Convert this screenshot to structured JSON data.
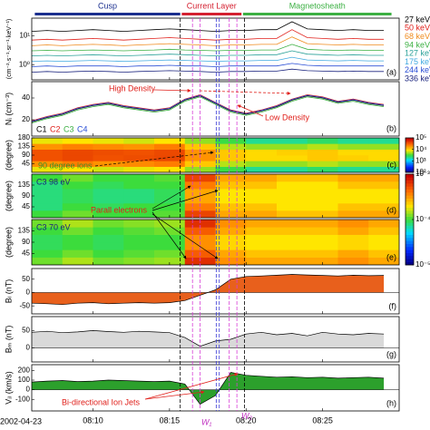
{
  "header": {
    "segments": [
      {
        "name": "Cusp",
        "color": "#1a2f8f",
        "span": [
          6.2,
          15.7
        ]
      },
      {
        "name": "Current Layer",
        "color": "#d42030",
        "span": [
          15.8,
          19.7
        ]
      },
      {
        "name": "Magnetosheath",
        "color": "#3cb043",
        "span": [
          19.8,
          29.5
        ]
      }
    ]
  },
  "time_axis": {
    "date_label": "2002-04-23",
    "xlim": [
      6,
      30
    ],
    "xticks": [
      {
        "value": 10,
        "label": "08:10"
      },
      {
        "value": 15,
        "label": "08:15"
      },
      {
        "value": 20,
        "label": "08:20"
      },
      {
        "value": 25,
        "label": "08:25"
      }
    ]
  },
  "markers": [
    {
      "t": 15.7,
      "color": "#000000"
    },
    {
      "t": 16.5,
      "color": "#d63cd6"
    },
    {
      "t": 17.0,
      "color": "#d63cd6"
    },
    {
      "t": 18.05,
      "color": "#3a3ad6"
    },
    {
      "t": 18.25,
      "color": "#3a3ad6"
    },
    {
      "t": 18.9,
      "color": "#d63cd6"
    },
    {
      "t": 19.4,
      "color": "#d63cd6"
    },
    {
      "t": 19.9,
      "color": "#000000"
    }
  ],
  "annotations": {
    "high_density": "High Density",
    "low_density": "Low Density",
    "ions": "90 degree ions",
    "electrons": "Parall electrons",
    "jets": "Bi-directional Ion Jets",
    "w1": "W₁",
    "w2": "W₂"
  },
  "chart_data": [
    {
      "type": "line",
      "label": "(a)",
      "ylabel": "(cm⁻²·s⁻¹·sr⁻¹·keV⁻¹)",
      "log": true,
      "ylim": [
        0.3,
        40
      ],
      "yticks": [
        {
          "value": 1,
          "label": "10⁰"
        },
        {
          "value": 10,
          "label": "10¹"
        }
      ],
      "x": [
        6,
        7,
        8,
        9,
        10,
        11,
        12,
        13,
        14,
        15,
        16,
        17,
        18,
        19,
        20,
        21,
        22,
        23,
        24,
        25,
        26,
        27,
        28,
        29
      ],
      "series": [
        {
          "name": "27 keV",
          "color": "#000000",
          "values": [
            14,
            15,
            14,
            15,
            16,
            15,
            14,
            15,
            16,
            17,
            16,
            15,
            14,
            15,
            15,
            16,
            16,
            30,
            17,
            16,
            15,
            16,
            15,
            15
          ]
        },
        {
          "name": "50 keV",
          "color": "#e0201b",
          "values": [
            7,
            7.5,
            7,
            7.5,
            8,
            7.5,
            7,
            7.5,
            8,
            8.5,
            8,
            7.5,
            7,
            7.5,
            7.5,
            8,
            8,
            16,
            8.5,
            8,
            7.5,
            8,
            7.5,
            7.5
          ]
        },
        {
          "name": "68 keV",
          "color": "#f08a1c",
          "values": [
            4.5,
            4.8,
            4.5,
            4.8,
            5,
            4.8,
            4.5,
            4.8,
            5,
            5.3,
            5,
            4.8,
            4.5,
            4.8,
            4.8,
            5,
            5,
            9,
            5.3,
            5,
            4.8,
            5,
            4.8,
            4.8
          ]
        },
        {
          "name": "94 keV",
          "color": "#3cb043",
          "values": [
            3,
            3.1,
            3,
            3.1,
            3.2,
            3.1,
            3,
            3.1,
            3.2,
            3.4,
            3.2,
            3.1,
            3,
            3.1,
            3.1,
            3.2,
            3.2,
            5,
            3.4,
            3.2,
            3.1,
            3.2,
            3.1,
            3.1
          ]
        },
        {
          "name": "127 keV",
          "color": "#2aa198",
          "values": [
            2,
            2.1,
            2,
            2.1,
            2.2,
            2.1,
            2,
            2.1,
            2.2,
            2.3,
            2.2,
            2.1,
            2,
            2.1,
            2.1,
            2.2,
            2.2,
            3,
            2.3,
            2.2,
            2.1,
            2.2,
            2.1,
            2.1
          ]
        },
        {
          "name": "175 keV",
          "color": "#3fa9e0",
          "values": [
            1.3,
            1.35,
            1.3,
            1.35,
            1.4,
            1.35,
            1.3,
            1.35,
            1.4,
            1.45,
            1.4,
            1.35,
            1.3,
            1.35,
            1.35,
            1.4,
            1.4,
            1.8,
            1.45,
            1.4,
            1.35,
            1.4,
            1.35,
            1.35
          ]
        },
        {
          "name": "244 keV",
          "color": "#2b4fd6",
          "values": [
            0.85,
            0.9,
            0.85,
            0.9,
            0.9,
            0.9,
            0.85,
            0.9,
            0.9,
            0.95,
            0.9,
            0.9,
            0.85,
            0.9,
            0.9,
            0.9,
            0.9,
            1.1,
            0.95,
            0.9,
            0.9,
            0.9,
            0.9,
            0.9
          ]
        },
        {
          "name": "336 keV",
          "color": "#1a237e",
          "values": [
            0.55,
            0.58,
            0.55,
            0.58,
            0.6,
            0.58,
            0.55,
            0.58,
            0.6,
            0.62,
            0.6,
            0.58,
            0.55,
            0.58,
            0.58,
            0.6,
            0.6,
            0.7,
            0.62,
            0.6,
            0.58,
            0.6,
            0.58,
            0.58
          ]
        }
      ]
    },
    {
      "type": "line",
      "label": "(b)",
      "ylabel": "Nᵢ (cm⁻³)",
      "ylim": [
        5,
        55
      ],
      "yticks": [
        20,
        40
      ],
      "x": [
        6,
        7,
        8,
        9,
        10,
        11,
        12,
        13,
        14,
        15,
        16,
        17,
        18,
        19,
        20,
        21,
        22,
        23,
        24,
        25,
        26,
        27,
        28,
        29
      ],
      "series": [
        {
          "name": "C1",
          "color": "#000000",
          "values": [
            18,
            22,
            25,
            30,
            33,
            35,
            32,
            30,
            28,
            30,
            38,
            42,
            35,
            28,
            25,
            28,
            32,
            38,
            42,
            40,
            36,
            38,
            35,
            33
          ]
        },
        {
          "name": "C2",
          "color": "#e0201b",
          "values": [
            19,
            23,
            26,
            31,
            34,
            36,
            33,
            31,
            29,
            31,
            39,
            43,
            36,
            29,
            26,
            29,
            33,
            39,
            43,
            41,
            37,
            39,
            36,
            34
          ]
        },
        {
          "name": "C3",
          "color": "#3cb043",
          "values": [
            17,
            21,
            24,
            29,
            32,
            34,
            31,
            29,
            27,
            29,
            37,
            41,
            34,
            27,
            24,
            27,
            31,
            37,
            41,
            39,
            35,
            37,
            34,
            32
          ]
        },
        {
          "name": "C4",
          "color": "#2b4fd6",
          "values": [
            18.5,
            22.5,
            25.5,
            30.5,
            33.5,
            35.5,
            32.5,
            30.5,
            28.5,
            30.5,
            38.5,
            42.5,
            35.5,
            28.5,
            25.5,
            28.5,
            32.5,
            38.5,
            42.5,
            40.5,
            36.5,
            38.5,
            35.5,
            33.5
          ]
        }
      ]
    },
    {
      "type": "heatmap",
      "label": "(c)",
      "ylabel": "(degree)",
      "ylim": [
        0,
        180
      ],
      "yticks": [
        45,
        90,
        135,
        180
      ],
      "x_bins": [
        6,
        8,
        10,
        12,
        14,
        16,
        18,
        20,
        22,
        24,
        26,
        28,
        30
      ],
      "y_bins": [
        0,
        30,
        60,
        90,
        120,
        150,
        180
      ],
      "colormap": "jet",
      "clim": [
        100,
        100000
      ],
      "colorbar_ticks": [
        {
          "value": 100,
          "label": "10²"
        },
        {
          "value": 1000,
          "label": "10³"
        },
        {
          "value": 10000,
          "label": "10⁴"
        },
        {
          "value": 100000,
          "label": "10⁵"
        }
      ],
      "values": [
        [
          8000,
          9000,
          7000,
          8000,
          9000,
          5000,
          3000,
          2000,
          2000,
          2500,
          2000,
          2000
        ],
        [
          20000,
          25000,
          20000,
          22000,
          25000,
          12000,
          6000,
          5000,
          5000,
          6000,
          5000,
          5000
        ],
        [
          40000,
          45000,
          40000,
          42000,
          45000,
          20000,
          12000,
          10000,
          10000,
          12000,
          11000,
          10000
        ],
        [
          40000,
          45000,
          42000,
          40000,
          44000,
          20000,
          12000,
          10000,
          11000,
          12000,
          10000,
          10000
        ],
        [
          20000,
          24000,
          22000,
          20000,
          25000,
          12000,
          6000,
          5000,
          5000,
          6000,
          5000,
          5000
        ],
        [
          8000,
          9000,
          8000,
          7000,
          9000,
          5000,
          3000,
          2000,
          2000,
          2500,
          2000,
          2000
        ]
      ]
    },
    {
      "type": "heatmap",
      "label": "(d)",
      "ylabel": "(degree)",
      "tag": "C3 98 eV",
      "ylim": [
        0,
        180
      ],
      "yticks": [
        45,
        90,
        135
      ],
      "x_bins": [
        6,
        8,
        10,
        12,
        14,
        16,
        18,
        20,
        22,
        24,
        26,
        28,
        30
      ],
      "y_bins": [
        0,
        30,
        60,
        90,
        120,
        150,
        180
      ],
      "colormap": "jet",
      "clim": [
        1e-05,
        0.001
      ],
      "colorbar_ticks": [
        {
          "value": 1e-05,
          "label": "10⁻⁵"
        },
        {
          "value": 0.0001,
          "label": "10⁻⁴"
        },
        {
          "value": 0.001,
          "label": "10⁻³"
        }
      ],
      "values": [
        [
          0.0001,
          0.00012,
          0.0001,
          0.0001,
          0.00011,
          0.0006,
          0.0003,
          0.0003,
          0.00025,
          0.00025,
          0.0003,
          0.0003
        ],
        [
          8e-05,
          0.0001,
          9e-05,
          0.0001,
          0.0001,
          0.0004,
          0.00025,
          0.00025,
          0.0002,
          0.0002,
          0.00025,
          0.00025
        ],
        [
          8e-05,
          9e-05,
          8e-05,
          8e-05,
          9e-05,
          0.0003,
          0.0002,
          0.0002,
          0.0002,
          0.0002,
          0.0002,
          0.0002
        ],
        [
          8e-05,
          9e-05,
          8e-05,
          8e-05,
          9e-05,
          0.0003,
          0.0002,
          0.0002,
          0.0002,
          0.0002,
          0.0002,
          0.0002
        ],
        [
          8e-05,
          0.0001,
          9e-05,
          0.0001,
          0.0001,
          0.0004,
          0.00025,
          0.00025,
          0.0002,
          0.0002,
          0.00025,
          0.00025
        ],
        [
          0.0001,
          0.00012,
          0.0001,
          0.0001,
          0.00011,
          0.0006,
          0.0003,
          0.0003,
          0.00025,
          0.00025,
          0.0003,
          0.0003
        ]
      ]
    },
    {
      "type": "heatmap",
      "label": "(e)",
      "ylabel": "(degree)",
      "tag": "C3 70 eV",
      "ylim": [
        0,
        180
      ],
      "yticks": [
        45,
        90,
        135
      ],
      "x_bins": [
        6,
        8,
        10,
        12,
        14,
        16,
        18,
        20,
        22,
        24,
        26,
        28,
        30
      ],
      "y_bins": [
        0,
        30,
        60,
        90,
        120,
        150,
        180
      ],
      "colormap": "jet",
      "clim": [
        1e-05,
        0.001
      ],
      "values": [
        [
          0.00012,
          0.00015,
          0.00012,
          0.00013,
          0.00014,
          0.0007,
          0.00035,
          0.0003,
          0.0003,
          0.0003,
          0.00035,
          0.0003
        ],
        [
          0.0001,
          0.00012,
          0.0001,
          0.00011,
          0.00012,
          0.0005,
          0.0003,
          0.00025,
          0.00025,
          0.00025,
          0.0003,
          0.00025
        ],
        [
          9e-05,
          0.0001,
          9e-05,
          0.0001,
          0.0001,
          0.00035,
          0.00022,
          0.0002,
          0.0002,
          0.0002,
          0.00022,
          0.0002
        ],
        [
          9e-05,
          0.0001,
          9e-05,
          0.0001,
          0.0001,
          0.00035,
          0.00022,
          0.0002,
          0.0002,
          0.0002,
          0.00022,
          0.0002
        ],
        [
          0.0001,
          0.00012,
          0.0001,
          0.00011,
          0.00012,
          0.0005,
          0.0003,
          0.00025,
          0.00025,
          0.00025,
          0.0003,
          0.00025
        ],
        [
          0.00012,
          0.00015,
          0.00012,
          0.00013,
          0.00014,
          0.0007,
          0.00035,
          0.0003,
          0.0003,
          0.0003,
          0.00035,
          0.0003
        ]
      ]
    },
    {
      "type": "area",
      "label": "(f)",
      "ylabel": "Bₗ (nT)",
      "ylim": [
        -80,
        90
      ],
      "yticks": [
        -50,
        0,
        50
      ],
      "color": "#e8601c",
      "x": [
        6,
        7,
        8,
        9,
        10,
        11,
        12,
        13,
        14,
        15,
        16,
        17,
        18,
        19,
        20,
        21,
        22,
        23,
        24,
        25,
        26,
        27,
        28,
        29
      ],
      "values": [
        -40,
        -42,
        -45,
        -40,
        -38,
        -42,
        -40,
        -38,
        -40,
        -38,
        -30,
        -10,
        10,
        50,
        60,
        62,
        65,
        68,
        66,
        64,
        62,
        65,
        63,
        64
      ]
    },
    {
      "type": "area",
      "label": "(g)",
      "ylabel": "Bₘ (nT)",
      "ylim": [
        -40,
        90
      ],
      "yticks": [
        0,
        50
      ],
      "color": "#d9d9d9",
      "x": [
        6,
        7,
        8,
        9,
        10,
        11,
        12,
        13,
        14,
        15,
        16,
        17,
        18,
        19,
        20,
        21,
        22,
        23,
        24,
        25,
        26,
        27,
        28,
        29
      ],
      "values": [
        45,
        48,
        44,
        46,
        50,
        47,
        45,
        48,
        46,
        44,
        30,
        5,
        20,
        25,
        40,
        45,
        38,
        42,
        35,
        45,
        40,
        38,
        42,
        40
      ]
    },
    {
      "type": "area",
      "label": "(h)",
      "ylabel": "Vᵢₗ (km/s)",
      "ylim": [
        -220,
        260
      ],
      "yticks": [
        -100,
        0,
        100,
        200
      ],
      "color": "#2ca02c",
      "x": [
        6,
        7,
        8,
        9,
        10,
        11,
        12,
        13,
        14,
        15,
        16,
        17,
        18,
        19,
        20,
        21,
        22,
        23,
        24,
        25,
        26,
        27,
        28,
        29
      ],
      "values": [
        80,
        90,
        95,
        85,
        90,
        100,
        95,
        90,
        85,
        90,
        60,
        -150,
        -60,
        180,
        150,
        140,
        130,
        135,
        125,
        130,
        120,
        125,
        130,
        120
      ]
    }
  ]
}
